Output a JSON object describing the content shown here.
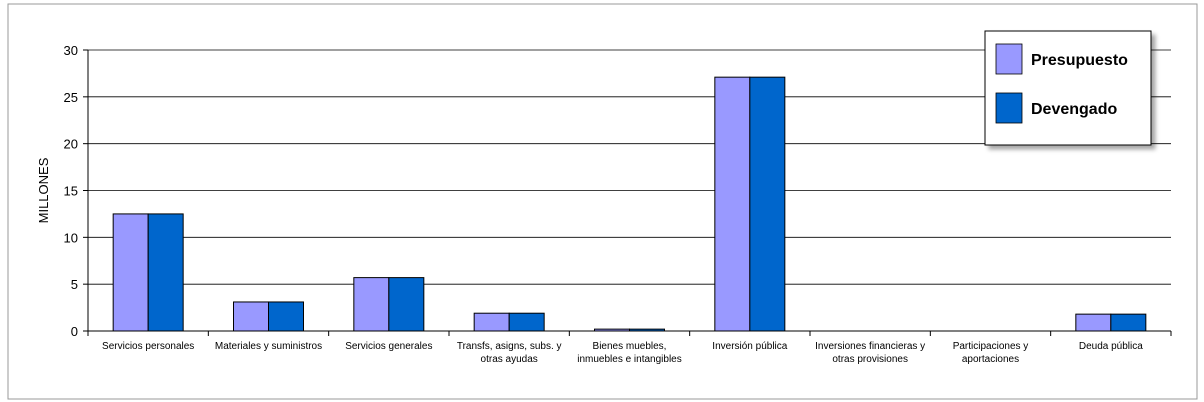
{
  "chart_data": {
    "type": "bar",
    "categories": [
      [
        "Servicios personales"
      ],
      [
        "Materiales y suministros"
      ],
      [
        "Servicios generales"
      ],
      [
        "Transfs, asigns, subs. y",
        "otras ayudas"
      ],
      [
        "Bienes muebles,",
        "inmuebles e intangibles"
      ],
      [
        "Inversión pública"
      ],
      [
        "Inversiones financieras y",
        "otras provisiones"
      ],
      [
        "Participaciones y",
        "aportaciones"
      ],
      [
        "Deuda pública"
      ]
    ],
    "series": [
      {
        "name": "Presupuesto",
        "color": "#9999ff",
        "values": [
          12.5,
          3.1,
          5.7,
          1.9,
          0.2,
          27.1,
          0,
          0,
          1.8
        ]
      },
      {
        "name": "Devengado",
        "color": "#0066cc",
        "values": [
          12.5,
          3.1,
          5.7,
          1.9,
          0.2,
          27.1,
          0,
          0,
          1.8
        ]
      }
    ],
    "ylabel": "MILLONES",
    "ylim": [
      0,
      30
    ],
    "yticks": [
      0,
      5,
      10,
      15,
      20,
      25,
      30
    ],
    "grid": true,
    "legend": "top-right"
  }
}
